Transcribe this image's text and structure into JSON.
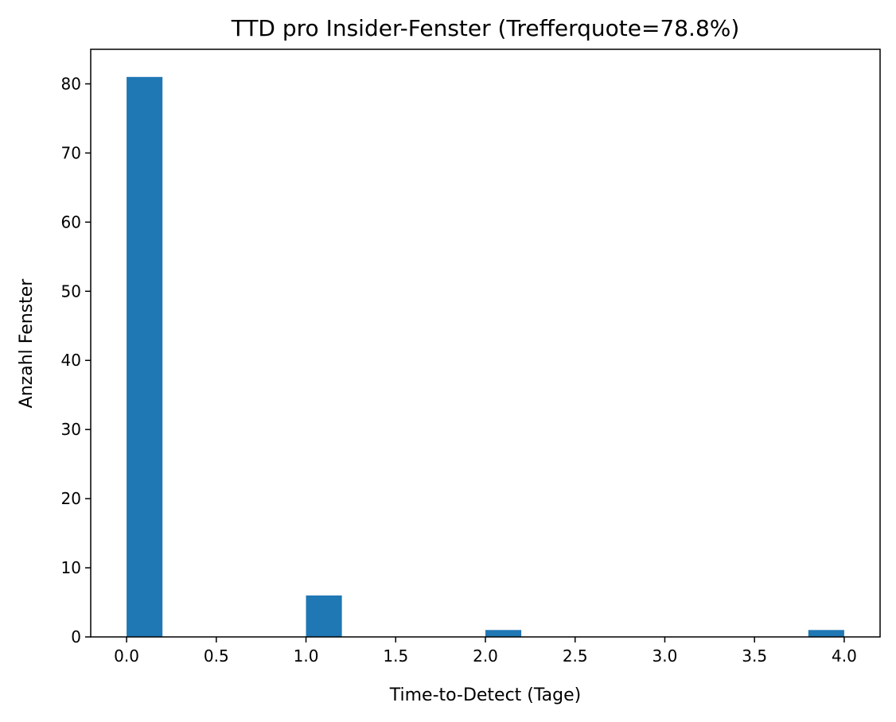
{
  "chart_data": {
    "type": "bar",
    "title": "TTD pro Insider-Fenster (Trefferquote=78.8%)",
    "xlabel": "Time-to-Detect (Tage)",
    "ylabel": "Anzahl Fenster",
    "xlim": [
      -0.2,
      4.2
    ],
    "ylim": [
      0,
      85
    ],
    "bin_width": 0.2,
    "bins": [
      {
        "x_start": 0.0,
        "count": 81
      },
      {
        "x_start": 1.0,
        "count": 6
      },
      {
        "x_start": 2.0,
        "count": 1
      },
      {
        "x_start": 3.8,
        "count": 1
      }
    ],
    "xticks": [
      "0.0",
      "0.5",
      "1.0",
      "1.5",
      "2.0",
      "2.5",
      "3.0",
      "3.5",
      "4.0"
    ],
    "yticks": [
      "0",
      "10",
      "20",
      "30",
      "40",
      "50",
      "60",
      "70",
      "80"
    ],
    "grid": false,
    "bar_color": "#1f77b4"
  }
}
